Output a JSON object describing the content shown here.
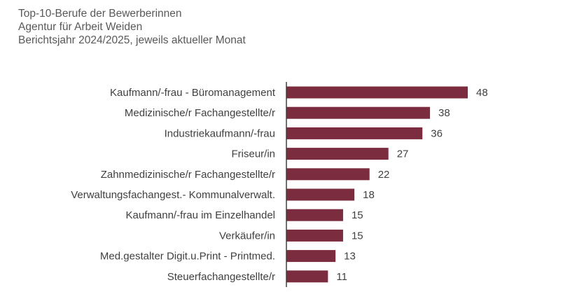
{
  "chart_data": {
    "type": "bar",
    "orientation": "horizontal",
    "title": "Top-10-Berufe der Bewerberinnen",
    "subtitle": [
      "Agentur für Arbeit Weiden",
      "Berichtsjahr 2024/2025, jeweils aktueller Monat"
    ],
    "categories": [
      "Kaufmann/-frau - Büromanagement",
      "Medizinische/r Fachangestellte/r",
      "Industriekaufmann/-frau",
      "Friseur/in",
      "Zahnmedizinische/r Fachangestellte/r",
      "Verwaltungsfachangest.- Kommunalverwalt.",
      "Kaufmann/-frau im Einzelhandel",
      "Verkäufer/in",
      "Med.gestalter Digit.u.Print - Printmed.",
      "Steuerfachangestellte/r"
    ],
    "values": [
      48,
      38,
      36,
      27,
      22,
      18,
      15,
      15,
      13,
      11
    ],
    "xlim": [
      0,
      48
    ],
    "grid": false,
    "data_labels": true,
    "bar_color": "#7B2C3E"
  }
}
